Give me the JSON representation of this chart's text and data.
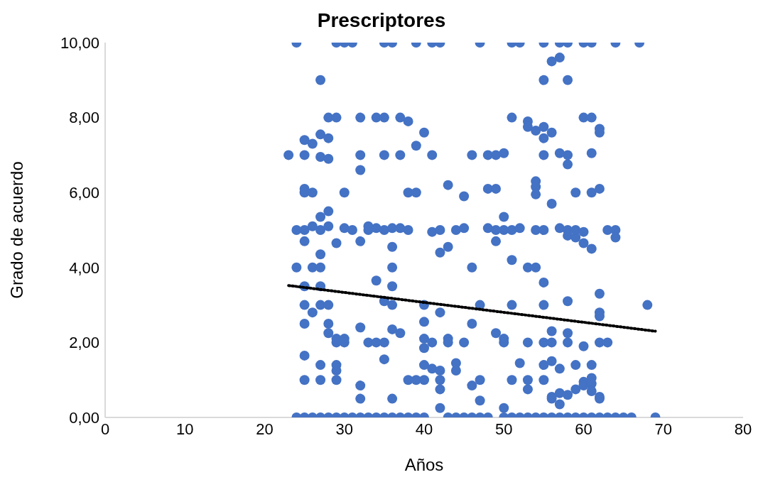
{
  "chart_data": {
    "type": "scatter",
    "title": "Prescriptores",
    "xlabel": "Años",
    "ylabel": "Grado de acuerdo",
    "xlim": [
      0,
      80
    ],
    "xticks": [
      0,
      10,
      20,
      30,
      40,
      50,
      60,
      70,
      80
    ],
    "ylim": [
      0,
      10
    ],
    "yticks": [
      {
        "value": 0,
        "label": "0,00"
      },
      {
        "value": 2,
        "label": "2,00"
      },
      {
        "value": 4,
        "label": "4,00"
      },
      {
        "value": 6,
        "label": "6,00"
      },
      {
        "value": 8,
        "label": "8,00"
      },
      {
        "value": 10,
        "label": "10,00"
      }
    ],
    "series": [
      {
        "marker": "circle",
        "color": "#4472c4",
        "x": [
          24,
          29,
          30,
          31,
          35,
          36,
          39,
          41,
          42,
          47,
          51,
          52,
          55,
          57,
          58,
          60,
          61,
          64,
          67,
          27,
          57,
          56,
          55,
          58,
          28,
          29,
          32,
          34,
          35,
          37,
          38,
          40,
          39,
          51,
          53,
          53,
          54,
          55,
          55,
          56,
          60,
          61,
          62,
          62,
          23,
          25,
          25,
          26,
          27,
          28,
          27,
          28,
          32,
          32,
          35,
          37,
          41,
          46,
          48,
          49,
          50,
          55,
          57,
          58,
          58,
          61,
          25,
          25,
          26,
          30,
          38,
          39,
          43,
          45,
          48,
          49,
          54,
          54,
          54,
          56,
          59,
          61,
          62,
          24,
          25,
          26,
          27,
          27,
          28,
          28,
          30,
          31,
          33,
          33,
          34,
          35,
          36,
          37,
          38,
          41,
          42,
          44,
          45,
          48,
          49,
          49,
          50,
          50,
          51,
          52,
          54,
          55,
          57,
          58,
          58,
          59,
          59,
          60,
          60,
          61,
          63,
          64,
          64,
          25,
          29,
          27,
          32,
          36,
          42,
          43,
          24,
          26,
          27,
          36,
          46,
          51,
          53,
          54,
          25,
          27,
          34,
          36,
          55,
          58,
          62,
          68,
          25,
          26,
          27,
          28,
          35,
          36,
          40,
          42,
          47,
          51,
          55,
          62,
          62,
          25,
          28,
          28,
          29,
          29,
          30,
          30,
          32,
          33,
          34,
          35,
          36,
          37,
          40,
          40,
          40,
          41,
          43,
          43,
          45,
          46,
          49,
          50,
          50,
          53,
          55,
          56,
          56,
          58,
          58,
          60,
          62,
          63,
          25,
          25,
          27,
          27,
          29,
          29,
          29,
          35,
          38,
          39,
          40,
          40,
          41,
          42,
          42,
          44,
          44,
          47,
          51,
          52,
          53,
          55,
          55,
          56,
          57,
          59,
          59,
          60,
          60,
          61,
          61,
          61,
          61,
          62,
          32,
          32,
          36,
          42,
          42,
          46,
          47,
          50,
          53,
          56,
          56,
          57,
          57,
          58,
          62,
          24,
          25,
          26,
          27,
          28,
          29,
          30,
          31,
          32,
          33,
          34,
          35,
          36,
          37,
          38,
          39,
          40,
          43,
          44,
          45,
          46,
          47,
          48,
          50,
          51,
          52,
          53,
          54,
          55,
          56,
          57,
          58,
          59,
          60,
          61,
          62,
          63,
          64,
          65,
          66,
          69
        ],
        "values": [
          10,
          10,
          10,
          10,
          10,
          10,
          10,
          10,
          10,
          10,
          10,
          10,
          10,
          10,
          10,
          10,
          10,
          10,
          10,
          9,
          9.6,
          9.5,
          9,
          9,
          8,
          8,
          8,
          8,
          8,
          8,
          7.9,
          7.6,
          7.25,
          8,
          7.9,
          7.75,
          7.65,
          7.75,
          7.45,
          7.6,
          8,
          8,
          7.7,
          7.6,
          7,
          7.4,
          7,
          7.3,
          7.55,
          7.45,
          6.95,
          6.9,
          7,
          6.6,
          7,
          7,
          7,
          7,
          7,
          7,
          7.05,
          7,
          7.05,
          7,
          6.75,
          7.05,
          6.1,
          6,
          6,
          6,
          6,
          6,
          6.2,
          5.9,
          6.1,
          6.1,
          6.3,
          6.15,
          5.95,
          5.7,
          6,
          6,
          6.1,
          5,
          5,
          5.1,
          5,
          5.35,
          5.5,
          5.1,
          5.05,
          5,
          5,
          5.1,
          5.05,
          5,
          5.05,
          5.05,
          5,
          4.95,
          5,
          5,
          5.05,
          5.05,
          5,
          4.7,
          5.35,
          5,
          5,
          5.05,
          5,
          5,
          5.05,
          5,
          4.85,
          4.8,
          5,
          4.95,
          4.65,
          4.5,
          5,
          5,
          4.8,
          4.7,
          4.65,
          4.35,
          4.7,
          4.55,
          4.4,
          4.55,
          4,
          4,
          4,
          4,
          4,
          4.2,
          4,
          4,
          3.5,
          3.5,
          3.65,
          3.5,
          3.6,
          3.1,
          3.3,
          3,
          3,
          2.8,
          3,
          3,
          3.1,
          3,
          3,
          2.8,
          3,
          3,
          3,
          2.8,
          2.7,
          2.5,
          2.5,
          2.25,
          2,
          2.1,
          2.1,
          2,
          2.4,
          2,
          2,
          2,
          2.35,
          2.25,
          2.55,
          2.1,
          1.85,
          2,
          2.1,
          2,
          2,
          2.5,
          2.25,
          2.1,
          2,
          2,
          2,
          2.3,
          2,
          2.25,
          2,
          1.9,
          2,
          2,
          1.65,
          1,
          1.4,
          1,
          1.4,
          1.25,
          1,
          1.55,
          1,
          1,
          1.4,
          1,
          1.3,
          1.25,
          1,
          1.45,
          1.25,
          1,
          1,
          1.45,
          1,
          1.4,
          1,
          1.5,
          1.3,
          1.4,
          0.75,
          0.95,
          0.85,
          1.4,
          1.05,
          0.9,
          0.7,
          0.55,
          0.85,
          0.5,
          0.5,
          0.75,
          0.25,
          0.85,
          0.45,
          0.25,
          0.75,
          0.55,
          0.5,
          0.65,
          0.35,
          0.6,
          0.5,
          0,
          0,
          0,
          0,
          0,
          0,
          0,
          0,
          0,
          0,
          0,
          0,
          0,
          0,
          0,
          0,
          0,
          0,
          0,
          0,
          0,
          0,
          0,
          0,
          0,
          0,
          0,
          0,
          0,
          0,
          0,
          0,
          0,
          0,
          0,
          0,
          0,
          0,
          0,
          0,
          0
        ]
      },
      {
        "type": "line",
        "color": "#000000",
        "line_style": "dotted",
        "x": [
          23,
          69
        ],
        "values": [
          3.52,
          2.3
        ]
      }
    ]
  }
}
